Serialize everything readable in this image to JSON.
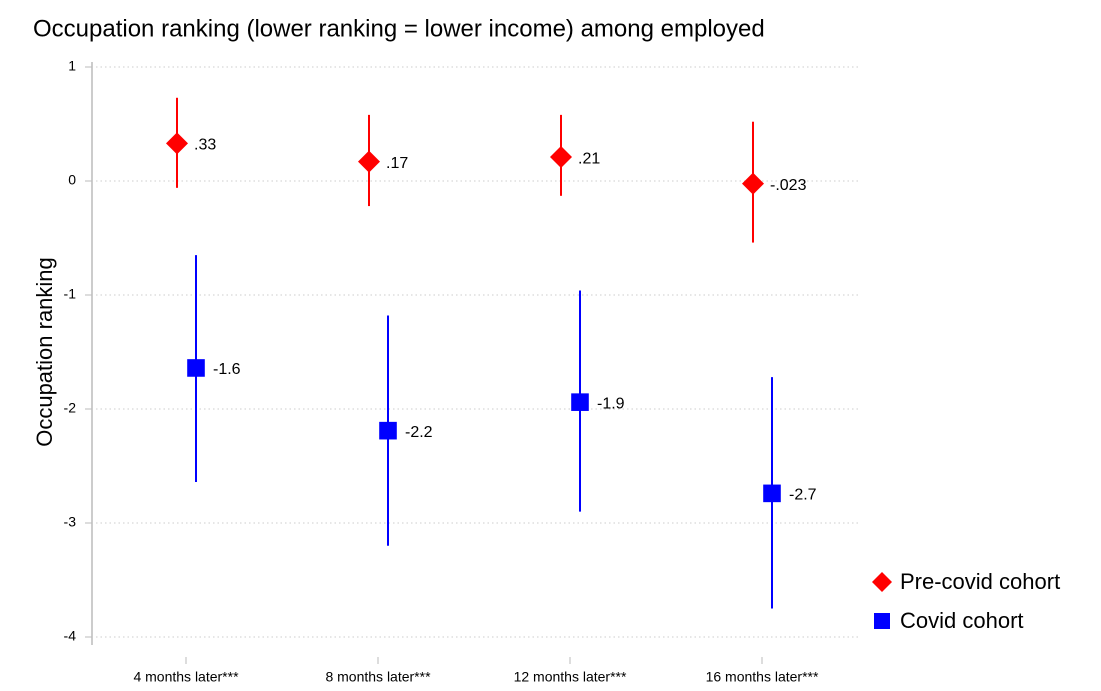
{
  "chart_data": {
    "type": "dot-errorbar",
    "title": "Occupation ranking (lower ranking = lower income) among employed",
    "y_label": "Occupation ranking",
    "categories": [
      "4 months later***",
      "8 months later***",
      "12 months later***",
      "16 months later***"
    ],
    "series": [
      {
        "name": "Pre-covid cohort",
        "color": "#ff0000",
        "marker": "diamond",
        "values": [
          0.33,
          0.17,
          0.21,
          -0.023
        ],
        "value_labels": [
          ".33",
          ".17",
          ".21",
          "-.023"
        ],
        "lower": [
          -0.06,
          -0.22,
          -0.13,
          -0.54
        ],
        "upper": [
          0.73,
          0.58,
          0.58,
          0.52
        ]
      },
      {
        "name": "Covid cohort",
        "color": "#0000ff",
        "marker": "square",
        "values": [
          -1.64,
          -2.19,
          -1.94,
          -2.74
        ],
        "value_labels": [
          "-1.6",
          "-2.2",
          "-1.9",
          "-2.7"
        ],
        "lower": [
          -2.64,
          -3.2,
          -2.9,
          -3.75
        ],
        "upper": [
          -0.65,
          -1.18,
          -0.96,
          -1.72
        ]
      }
    ],
    "ylim": [
      -4,
      1
    ],
    "yticks": [
      -4,
      -3,
      -2,
      -1,
      0,
      1
    ],
    "grid": true,
    "legend": "right"
  }
}
